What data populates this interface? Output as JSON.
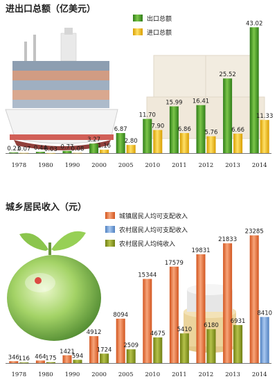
{
  "colors": {
    "export_green": "#4fa12c",
    "import_yellow": "#f2c200",
    "urban_orange": "#e66a33",
    "rural_blue": "#6f9fd8",
    "rural_olive": "#8c9e1f"
  },
  "chart_data": [
    {
      "type": "bar",
      "title": "进出口总额（亿美元）",
      "categories": [
        "1978",
        "1980",
        "1990",
        "2000",
        "2005",
        "2010",
        "2011",
        "2012",
        "2013",
        "2014"
      ],
      "series": [
        {
          "name": "出口总额",
          "values": [
            0.23,
            0.44,
            0.77,
            3.27,
            6.87,
            11.7,
            15.99,
            16.41,
            25.52,
            43.02
          ],
          "labels": [
            "0.23",
            "0.44",
            "0.77",
            "3.27",
            "6.87",
            "11.70",
            "15.99",
            "16.41",
            "25.52",
            "43.02"
          ]
        },
        {
          "name": "进口总额",
          "values": [
            0.07,
            0.03,
            0.08,
            1.16,
            2.8,
            7.9,
            6.86,
            5.76,
            6.66,
            11.33
          ],
          "labels": [
            "0.07",
            "0.03",
            "0.08",
            "1.16",
            "2.80",
            "7.90",
            "6.86",
            "5.76",
            "6.66",
            "11.33"
          ]
        }
      ],
      "ylim": [
        0,
        45
      ],
      "legend": "top-center"
    },
    {
      "type": "bar",
      "title": "城乡居民收入（元）",
      "categories": [
        "1978",
        "1980",
        "1990",
        "2000",
        "2005",
        "2010",
        "2011",
        "2012",
        "2013",
        "2014"
      ],
      "series": [
        {
          "name": "城镇居民人均可支配收入",
          "values": [
            346,
            464,
            1421,
            4912,
            8094,
            15344,
            17579,
            19831,
            21833,
            23285
          ]
        },
        {
          "name": "农村居民人均可支配收入",
          "values": [
            null,
            null,
            null,
            null,
            null,
            null,
            null,
            null,
            null,
            8410
          ]
        },
        {
          "name": "农村居民人均纯收入",
          "values": [
            116,
            175,
            594,
            1724,
            2509,
            4675,
            5410,
            6180,
            6931,
            null
          ]
        }
      ],
      "ylim": [
        0,
        24000
      ],
      "legend": "top-center"
    }
  ]
}
